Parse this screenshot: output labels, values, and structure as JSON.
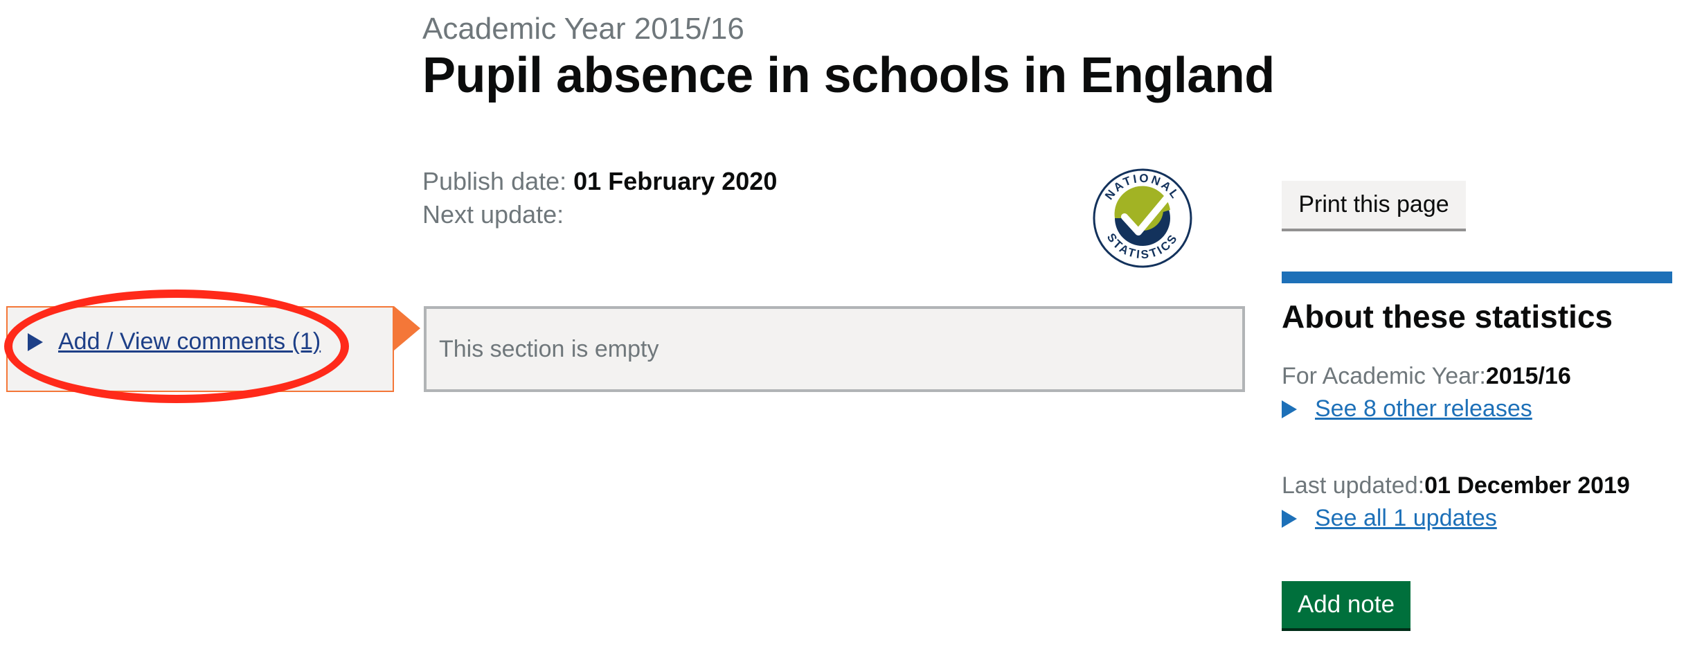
{
  "header": {
    "caption": "Academic Year 2015/16",
    "title": "Pupil absence in schools in England"
  },
  "meta": {
    "publish_label": "Publish date: ",
    "publish_value": "01 February 2020",
    "next_update_label": "Next update:"
  },
  "logo": {
    "name": "national-statistics-logo",
    "text_top": "NATIONAL",
    "text_bottom": "STATISTICS"
  },
  "comments": {
    "link_label": "Add / View comments (1)"
  },
  "section": {
    "empty_text": "This section is empty"
  },
  "sidebar": {
    "print_label": "Print this page",
    "about_heading": "About these statistics",
    "academic_year_label": "For Academic Year:",
    "academic_year_value": "2015/16",
    "other_releases_link": "See 8 other releases",
    "last_updated_label": "Last updated:",
    "last_updated_value": "01 December 2019",
    "all_updates_link": "See all 1 updates",
    "add_note_label": "Add note"
  },
  "colors": {
    "link": "#1d70b8",
    "comment_border": "#f47738",
    "highlight_oval": "#ff2a1a",
    "add_note_button": "#00703c",
    "accent_bar": "#1d70b8"
  }
}
